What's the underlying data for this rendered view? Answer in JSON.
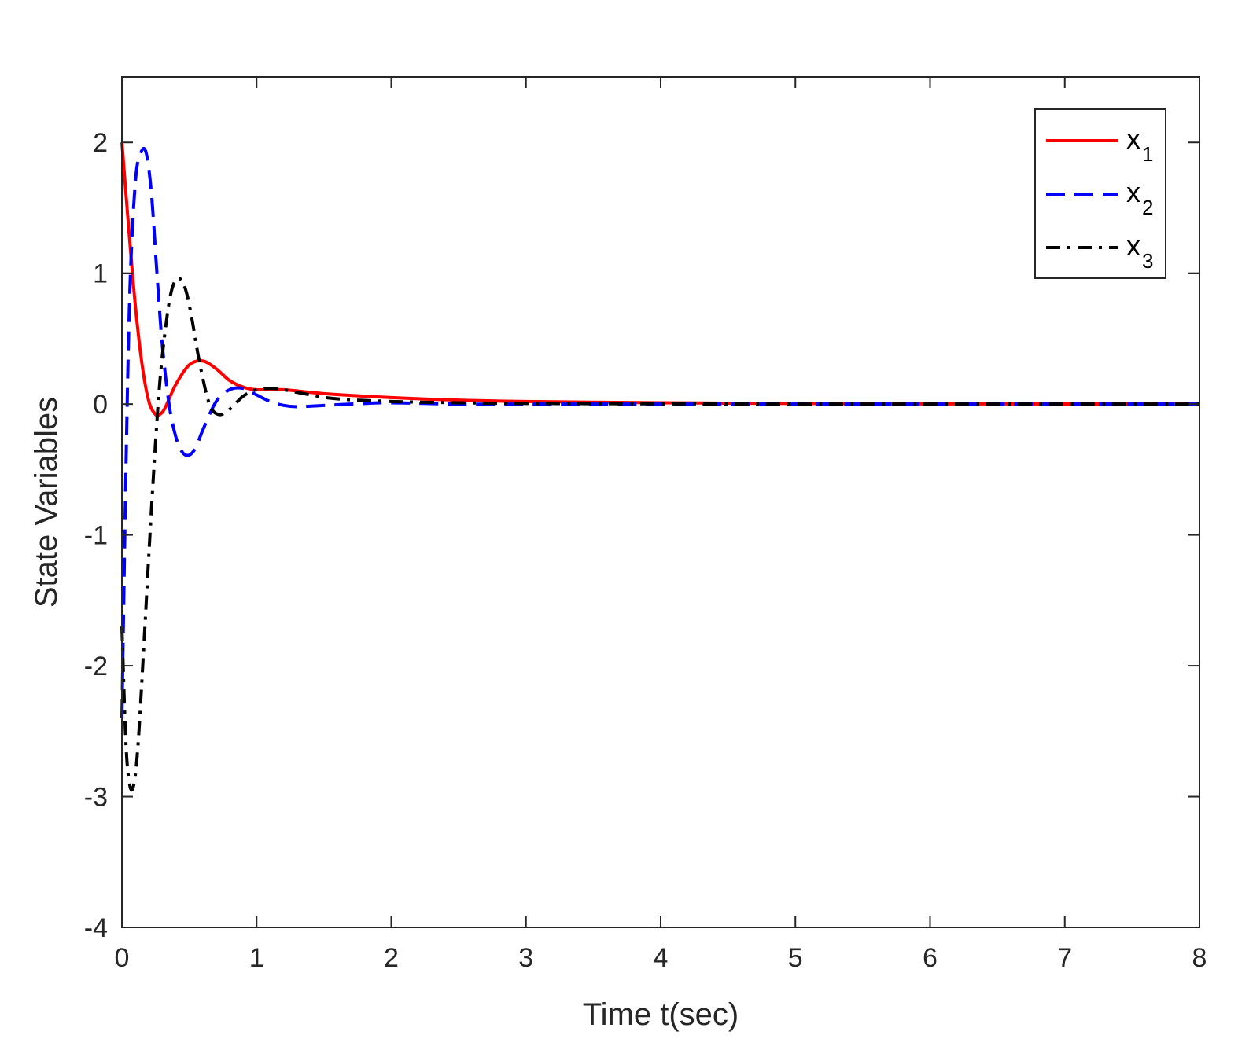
{
  "chart_data": {
    "type": "line",
    "title": "",
    "xlabel": "Time t(sec)",
    "ylabel": "State Variables",
    "xlim": [
      0,
      8
    ],
    "ylim": [
      -4,
      2.5
    ],
    "xticks": [
      0,
      1,
      2,
      3,
      4,
      5,
      6,
      7,
      8
    ],
    "yticks": [
      -4,
      -3,
      -2,
      -1,
      0,
      1,
      2
    ],
    "xtick_labels": [
      "0",
      "1",
      "2",
      "3",
      "4",
      "5",
      "6",
      "7",
      "8"
    ],
    "ytick_labels": [
      "-4",
      "-3",
      "-2",
      "-1",
      "0",
      "1",
      "2"
    ],
    "grid": false,
    "legend_position": "top-right",
    "series": [
      {
        "name": "x1",
        "label_base": "x",
        "label_sub": "1",
        "color": "#ff0000",
        "style": "solid",
        "x": [
          0,
          0.05,
          0.1,
          0.15,
          0.2,
          0.25,
          0.28,
          0.32,
          0.4,
          0.5,
          0.6,
          0.7,
          0.8,
          0.9,
          1.0,
          1.2,
          1.5,
          2.0,
          2.5,
          3.0,
          4.0,
          5.0,
          6.0,
          7.0,
          8.0
        ],
        "y": [
          2.0,
          1.35,
          0.75,
          0.3,
          0.02,
          -0.08,
          -0.08,
          -0.03,
          0.15,
          0.3,
          0.33,
          0.27,
          0.18,
          0.13,
          0.11,
          0.11,
          0.08,
          0.05,
          0.03,
          0.02,
          0.01,
          0.005,
          0.002,
          0.001,
          0.0
        ]
      },
      {
        "name": "x2",
        "label_base": "x",
        "label_sub": "2",
        "color": "#0000ff",
        "style": "dashed",
        "x": [
          0,
          0.03,
          0.06,
          0.1,
          0.14,
          0.18,
          0.22,
          0.26,
          0.3,
          0.35,
          0.4,
          0.45,
          0.5,
          0.55,
          0.6,
          0.7,
          0.8,
          0.9,
          1.0,
          1.1,
          1.2,
          1.3,
          1.5,
          1.8,
          2.0,
          2.5,
          3.0,
          4.0,
          5.0,
          6.0,
          7.0,
          8.0
        ],
        "y": [
          -2.4,
          -0.5,
          0.9,
          1.7,
          1.92,
          1.92,
          1.6,
          1.0,
          0.45,
          0.0,
          -0.25,
          -0.37,
          -0.39,
          -0.33,
          -0.2,
          0.02,
          0.11,
          0.12,
          0.07,
          0.02,
          -0.01,
          -0.02,
          -0.01,
          0.005,
          0.01,
          0.0,
          0.0,
          0.0,
          0.0,
          0.0,
          0.0,
          0.0
        ]
      },
      {
        "name": "x3",
        "label_base": "x",
        "label_sub": "3",
        "color": "#000000",
        "style": "dashdot",
        "x": [
          0,
          0.03,
          0.06,
          0.09,
          0.12,
          0.16,
          0.2,
          0.24,
          0.28,
          0.32,
          0.36,
          0.4,
          0.44,
          0.48,
          0.52,
          0.58,
          0.65,
          0.72,
          0.8,
          0.9,
          1.0,
          1.1,
          1.2,
          1.4,
          1.6,
          2.0,
          2.5,
          3.0,
          4.0,
          5.0,
          6.0,
          7.0,
          8.0
        ],
        "y": [
          -1.7,
          -2.6,
          -2.92,
          -2.9,
          -2.6,
          -1.9,
          -1.15,
          -0.45,
          0.15,
          0.55,
          0.83,
          0.95,
          0.95,
          0.85,
          0.65,
          0.3,
          0.0,
          -0.08,
          -0.04,
          0.06,
          0.11,
          0.12,
          0.11,
          0.07,
          0.04,
          0.02,
          0.01,
          0.005,
          0.002,
          0.0,
          0.0,
          0.0,
          0.0
        ]
      }
    ]
  }
}
